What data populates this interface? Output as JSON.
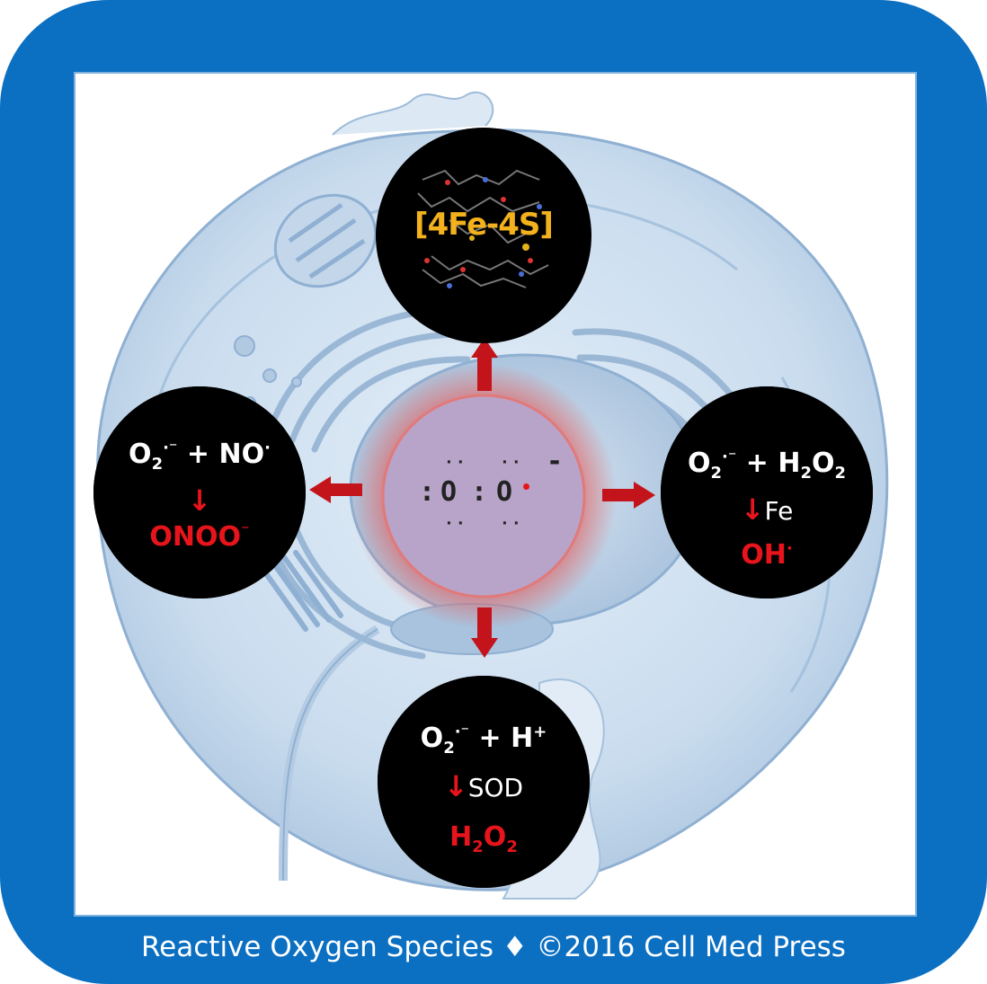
{
  "footer": "Reactive Oxygen Species ♦ ©2016 Cell Med Press",
  "colors": {
    "frame": "#0b6fc2",
    "cell": "#c9dcee",
    "arrow": "#c4141b",
    "superoxide_core": "#b9a4c9",
    "text_red": "#e8141b"
  },
  "center": {
    "atom1": "O",
    "atom2": "O",
    "charge": "-"
  },
  "top": {
    "label": "[4Fe-4S]"
  },
  "left": {
    "reactant1": "O",
    "r1_sub": "2",
    "r1_sup": "·⁻",
    "plus": "+",
    "reactant2": "NO",
    "r2_sup": "·",
    "arrow": "↓",
    "product": "ONOO",
    "product_sup": "⁻"
  },
  "right": {
    "reactant1": "O",
    "r1_sub": "2",
    "r1_sup": "·⁻",
    "plus": "+",
    "reactant2": "H",
    "r2_sub": "2",
    "r2_mid": "O",
    "r2_sub2": "2",
    "arrow": "↓",
    "catalyst": "Fe",
    "product": "OH",
    "product_sup": "·"
  },
  "bottom": {
    "reactant1": "O",
    "r1_sub": "2",
    "r1_sup": "·⁻",
    "plus": "+",
    "reactant2": "H",
    "r2_sup": "+",
    "arrow": "↓",
    "catalyst": "SOD",
    "product": "H",
    "product_sub": "2",
    "product_mid": "O",
    "product_sub2": "2"
  }
}
